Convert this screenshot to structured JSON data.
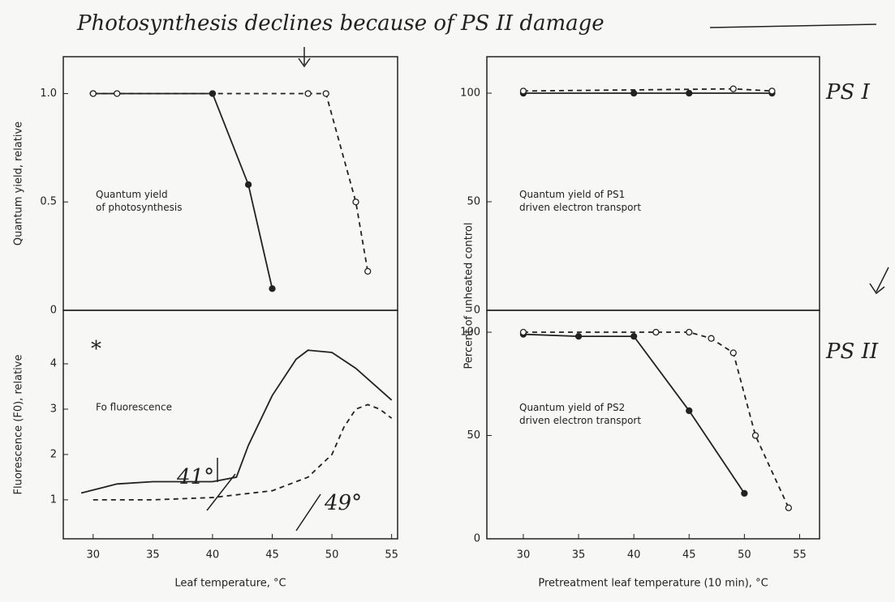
{
  "note_top": "Photosynthesis declines because of PS II damage",
  "note_ps1": "PS I",
  "note_ps2": "PS II",
  "note_star": "*",
  "note_41": "41°",
  "note_49": "49°",
  "shared_ylabel": "Percent of unheated control",
  "chart_data": [
    {
      "type": "line",
      "ylabel": "Quantum yield, relative",
      "annotation": "Quantum yield of photosynthesis",
      "xlim": [
        27.5,
        55.5
      ],
      "ylim": [
        0,
        1.17
      ],
      "yticks": [
        0,
        {
          "value": 0.5,
          "label": "0.5"
        },
        {
          "value": 1,
          "label": "1.0"
        }
      ],
      "series": [
        {
          "style": "solid",
          "marker": "filled",
          "color": "#222",
          "x": [
            30,
            40,
            43,
            45
          ],
          "values": [
            1.0,
            1.0,
            0.58,
            0.1
          ]
        },
        {
          "style": "dashed",
          "marker": "open",
          "color": "#222",
          "x": [
            30,
            32,
            48,
            49.5,
            52,
            53
          ],
          "values": [
            1.0,
            1.0,
            1.0,
            1.0,
            0.5,
            0.18
          ]
        }
      ]
    },
    {
      "type": "line",
      "ylabel": "Fluorescence (F0), relative",
      "xlabel": "Leaf temperature, °C",
      "annotation": "Fo fluorescence",
      "xlim": [
        27.5,
        55.5
      ],
      "ylim": [
        0.14,
        5.18
      ],
      "xticks": [
        30,
        35,
        40,
        45,
        50,
        55
      ],
      "yticks": [
        1,
        2,
        3,
        4
      ],
      "series": [
        {
          "style": "solid",
          "marker": "none",
          "color": "#222",
          "x": [
            29,
            32,
            35,
            40,
            42,
            43,
            45,
            47,
            48,
            50,
            52,
            55
          ],
          "values": [
            1.15,
            1.35,
            1.4,
            1.4,
            1.5,
            2.2,
            3.3,
            4.1,
            4.3,
            4.25,
            3.9,
            3.2
          ]
        },
        {
          "style": "dashed",
          "marker": "none",
          "color": "#222",
          "x": [
            30,
            35,
            40,
            45,
            48,
            50,
            51,
            52,
            53,
            54,
            55
          ],
          "values": [
            1.0,
            1.0,
            1.05,
            1.2,
            1.5,
            2.0,
            2.6,
            3.0,
            3.1,
            3.0,
            2.8
          ]
        }
      ]
    },
    {
      "type": "line",
      "annotation": "Quantum yield of PS1 driven electron transport",
      "xlim": [
        26.7,
        56.8
      ],
      "ylim": [
        0,
        116.8
      ],
      "yticks": [
        0,
        50,
        100
      ],
      "series": [
        {
          "style": "solid",
          "marker": "filled",
          "color": "#222",
          "x": [
            30,
            40,
            45,
            52.5
          ],
          "values": [
            100,
            100,
            100,
            100
          ]
        },
        {
          "style": "dashed",
          "marker": "open",
          "color": "#222",
          "x": [
            30,
            49,
            52.5
          ],
          "values": [
            101,
            102,
            101
          ]
        }
      ]
    },
    {
      "type": "line",
      "xlabel": "Pretreatment leaf temperature (10 min), °C",
      "annotation": "Quantum yield of PS2 driven electron transport",
      "xlim": [
        26.7,
        56.8
      ],
      "ylim": [
        0,
        110.6
      ],
      "xticks": [
        30,
        35,
        40,
        45,
        50,
        55
      ],
      "yticks": [
        0,
        50,
        100
      ],
      "series": [
        {
          "style": "solid",
          "marker": "filled",
          "color": "#222",
          "x": [
            30,
            35,
            40,
            45,
            50
          ],
          "values": [
            99,
            98,
            98,
            62,
            22
          ]
        },
        {
          "style": "dashed",
          "marker": "open",
          "color": "#222",
          "x": [
            30,
            42,
            45,
            47,
            49,
            51,
            54
          ],
          "values": [
            100,
            100,
            100,
            97,
            90,
            50,
            15
          ]
        }
      ]
    }
  ]
}
